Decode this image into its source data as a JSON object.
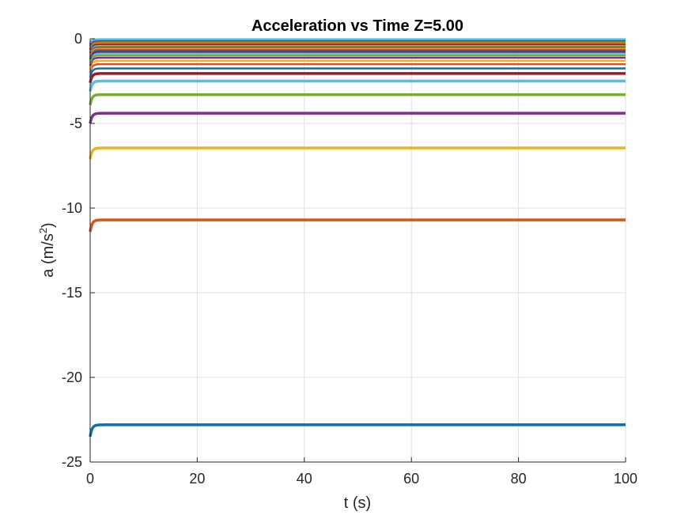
{
  "chart_data": {
    "type": "line",
    "title": "Acceleration vs Time Z=5.00",
    "xlabel": "t (s)",
    "ylabel_main": "a (m/s",
    "ylabel_sup": "2",
    "ylabel_close": ")",
    "xlim": [
      0,
      100
    ],
    "ylim": [
      -25,
      0
    ],
    "xticks": [
      0,
      20,
      40,
      60,
      80,
      100
    ],
    "yticks": [
      -25,
      -20,
      -15,
      -10,
      -5,
      0
    ],
    "xtick_labels": [
      "0",
      "20",
      "40",
      "60",
      "80",
      "100"
    ],
    "ytick_labels": [
      "-25",
      "-20",
      "-15",
      "-10",
      "-5",
      "0"
    ],
    "grid": true,
    "legend": "none",
    "series": [
      {
        "start": -23.5,
        "steady": -22.8,
        "color": "#0072BD"
      },
      {
        "start": -11.4,
        "steady": -10.7,
        "color": "#D95319"
      },
      {
        "start": -7.1,
        "steady": -6.45,
        "color": "#EDB120"
      },
      {
        "start": -5.0,
        "steady": -4.4,
        "color": "#7E2F8E"
      },
      {
        "start": -3.9,
        "steady": -3.3,
        "color": "#77AC30"
      },
      {
        "start": -3.1,
        "steady": -2.5,
        "color": "#4DBEEE"
      },
      {
        "start": -2.6,
        "steady": -2.05,
        "color": "#A2142F"
      },
      {
        "start": -2.3,
        "steady": -1.75,
        "color": "#0072BD"
      },
      {
        "start": -2.0,
        "steady": -1.5,
        "color": "#D95319"
      },
      {
        "start": -1.8,
        "steady": -1.3,
        "color": "#EDB120"
      },
      {
        "start": -1.6,
        "steady": -1.12,
        "color": "#7E2F8E"
      },
      {
        "start": -1.45,
        "steady": -0.98,
        "color": "#77AC30"
      },
      {
        "start": -1.3,
        "steady": -0.86,
        "color": "#4DBEEE"
      },
      {
        "start": -1.2,
        "steady": -0.76,
        "color": "#A2142F"
      },
      {
        "start": -1.1,
        "steady": -0.68,
        "color": "#0072BD"
      },
      {
        "start": -1.0,
        "steady": -0.6,
        "color": "#D95319"
      },
      {
        "start": -0.92,
        "steady": -0.53,
        "color": "#EDB120"
      },
      {
        "start": -0.85,
        "steady": -0.47,
        "color": "#7E2F8E"
      },
      {
        "start": -0.78,
        "steady": -0.41,
        "color": "#77AC30"
      },
      {
        "start": -0.72,
        "steady": -0.36,
        "color": "#4DBEEE"
      },
      {
        "start": -0.66,
        "steady": -0.31,
        "color": "#A2142F"
      },
      {
        "start": -0.6,
        "steady": -0.27,
        "color": "#0072BD"
      },
      {
        "start": -0.55,
        "steady": -0.23,
        "color": "#D95319"
      },
      {
        "start": -0.5,
        "steady": -0.19,
        "color": "#EDB120"
      },
      {
        "start": -0.45,
        "steady": -0.15,
        "color": "#7E2F8E"
      },
      {
        "start": -0.4,
        "steady": -0.12,
        "color": "#77AC30"
      },
      {
        "start": -0.35,
        "steady": -0.09,
        "color": "#A2142F"
      },
      {
        "start": -0.3,
        "steady": -0.06,
        "color": "#0072BD"
      },
      {
        "start": -0.25,
        "steady": -0.03,
        "color": "#4DBEEE"
      }
    ]
  }
}
